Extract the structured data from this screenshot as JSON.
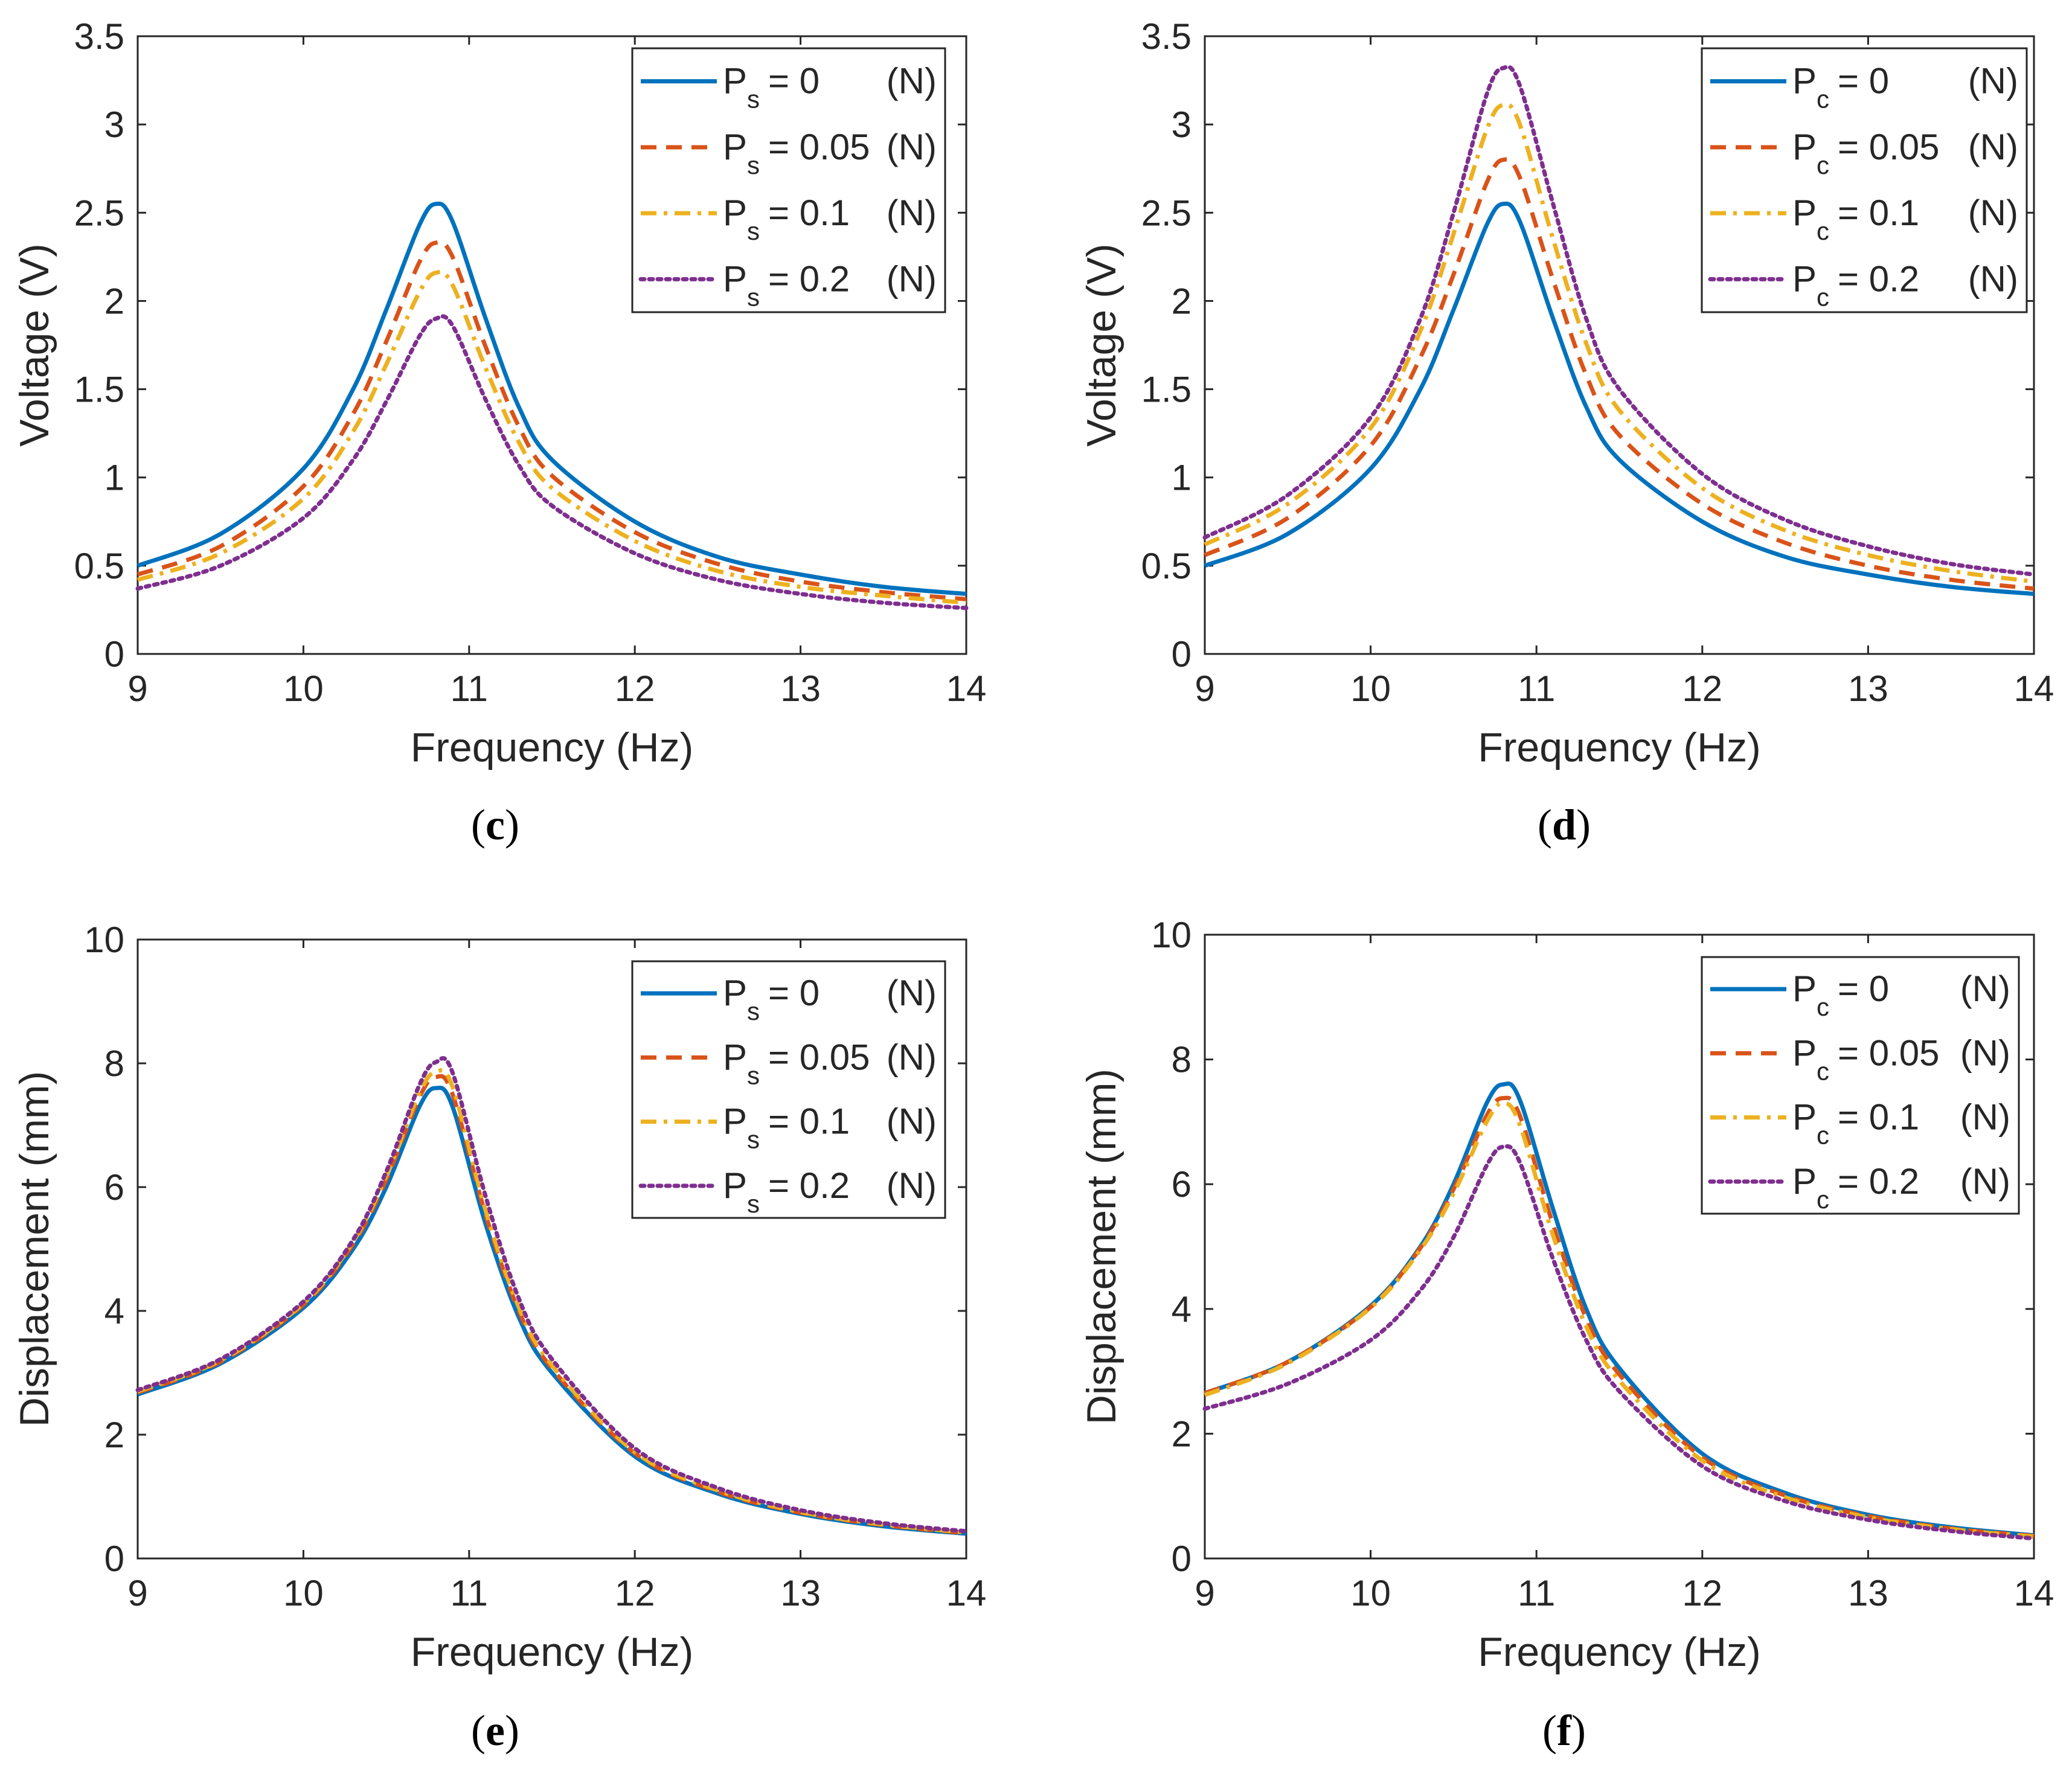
{
  "colors": {
    "series": [
      "#0072BD",
      "#D95319",
      "#EDB120",
      "#7E2F8E"
    ],
    "axis": "#262626",
    "background": "#ffffff"
  },
  "chart_data": [
    {
      "id": "c",
      "caption": "c",
      "type": "line",
      "xlabel": "Frequency (Hz)",
      "ylabel": "Voltage (V)",
      "xlim": [
        9,
        14
      ],
      "ylim": [
        0,
        3.5
      ],
      "xticks": [
        9,
        10,
        11,
        12,
        13,
        14
      ],
      "xtick_labels": [
        "9",
        "10",
        "11",
        "12",
        "13",
        "14"
      ],
      "yticks": [
        0,
        0.5,
        1,
        1.5,
        2,
        2.5,
        3,
        3.5
      ],
      "ytick_labels": [
        "0",
        "0.5",
        "1",
        "1.5",
        "2",
        "2.5",
        "3",
        "3.5"
      ],
      "legend_position": "top-right",
      "x": [
        9.0,
        9.5,
        10.0,
        10.3,
        10.5,
        10.7,
        10.8,
        10.9,
        11.1,
        11.3,
        11.5,
        12.0,
        12.5,
        13.0,
        13.5,
        14.0
      ],
      "series": [
        {
          "name": "Ps = 0 (N)",
          "sym": "P",
          "sub": "s",
          "val": "= 0",
          "unit": "(N)",
          "style": "solid",
          "values": [
            0.5,
            0.68,
            1.05,
            1.5,
            1.95,
            2.43,
            2.55,
            2.45,
            1.9,
            1.4,
            1.1,
            0.75,
            0.55,
            0.45,
            0.38,
            0.34
          ]
        },
        {
          "name": "Ps = 0.05 (N)",
          "sym": "P",
          "sub": "s",
          "val": "= 0.05",
          "unit": "(N)",
          "style": "dashed",
          "values": [
            0.45,
            0.61,
            0.95,
            1.36,
            1.77,
            2.22,
            2.33,
            2.25,
            1.74,
            1.29,
            1.01,
            0.69,
            0.51,
            0.41,
            0.35,
            0.31
          ]
        },
        {
          "name": "Ps = 0.1 (N)",
          "sym": "P",
          "sub": "s",
          "val": "= 0.1",
          "unit": "(N)",
          "style": "dashdot",
          "values": [
            0.42,
            0.57,
            0.88,
            1.26,
            1.64,
            2.05,
            2.16,
            2.09,
            1.62,
            1.2,
            0.94,
            0.64,
            0.47,
            0.38,
            0.33,
            0.29
          ]
        },
        {
          "name": "Ps = 0.2 (N)",
          "sym": "P",
          "sub": "s",
          "val": "= 0.2",
          "unit": "(N)",
          "style": "dotted",
          "values": [
            0.37,
            0.5,
            0.77,
            1.1,
            1.43,
            1.8,
            1.9,
            1.86,
            1.44,
            1.07,
            0.84,
            0.57,
            0.42,
            0.34,
            0.29,
            0.26
          ]
        }
      ]
    },
    {
      "id": "d",
      "caption": "d",
      "type": "line",
      "xlabel": "Frequency (Hz)",
      "ylabel": "Voltage (V)",
      "xlim": [
        9,
        14
      ],
      "ylim": [
        0,
        3.5
      ],
      "xticks": [
        9,
        10,
        11,
        12,
        13,
        14
      ],
      "xtick_labels": [
        "9",
        "10",
        "11",
        "12",
        "13",
        "14"
      ],
      "yticks": [
        0,
        0.5,
        1,
        1.5,
        2,
        2.5,
        3,
        3.5
      ],
      "ytick_labels": [
        "0",
        "0.5",
        "1",
        "1.5",
        "2",
        "2.5",
        "3",
        "3.5"
      ],
      "legend_position": "top-right",
      "x": [
        9.0,
        9.5,
        10.0,
        10.3,
        10.5,
        10.7,
        10.8,
        10.9,
        11.1,
        11.3,
        11.5,
        12.0,
        12.5,
        13.0,
        13.5,
        14.0
      ],
      "series": [
        {
          "name": "Pc = 0 (N)",
          "sym": "P",
          "sub": "c",
          "val": "= 0",
          "unit": "(N)",
          "style": "solid",
          "values": [
            0.5,
            0.68,
            1.05,
            1.5,
            1.95,
            2.43,
            2.55,
            2.45,
            1.9,
            1.4,
            1.1,
            0.75,
            0.55,
            0.45,
            0.38,
            0.34
          ]
        },
        {
          "name": "Pc = 0.05 (N)",
          "sym": "P",
          "sub": "c",
          "val": "= 0.05",
          "unit": "(N)",
          "style": "dashed",
          "values": [
            0.56,
            0.77,
            1.18,
            1.68,
            2.15,
            2.67,
            2.8,
            2.7,
            2.12,
            1.58,
            1.24,
            0.85,
            0.63,
            0.5,
            0.42,
            0.37
          ]
        },
        {
          "name": "Pc = 0.1 (N)",
          "sym": "P",
          "sub": "c",
          "val": "= 0.1",
          "unit": "(N)",
          "style": "dashdot",
          "values": [
            0.62,
            0.85,
            1.28,
            1.83,
            2.38,
            2.97,
            3.11,
            3.0,
            2.35,
            1.76,
            1.38,
            0.94,
            0.7,
            0.56,
            0.47,
            0.41
          ]
        },
        {
          "name": "Pc = 0.2 (N)",
          "sym": "P",
          "sub": "c",
          "val": "= 0.2",
          "unit": "(N)",
          "style": "dotted",
          "values": [
            0.66,
            0.9,
            1.34,
            1.9,
            2.5,
            3.17,
            3.32,
            3.22,
            2.55,
            1.9,
            1.5,
            1.02,
            0.76,
            0.61,
            0.51,
            0.45
          ]
        }
      ]
    },
    {
      "id": "e",
      "caption": "e",
      "type": "line",
      "xlabel": "Frequency (Hz)",
      "ylabel": "Displacement (mm)",
      "xlim": [
        9,
        14
      ],
      "ylim": [
        0,
        10
      ],
      "xticks": [
        9,
        10,
        11,
        12,
        13,
        14
      ],
      "xtick_labels": [
        "9",
        "10",
        "11",
        "12",
        "13",
        "14"
      ],
      "yticks": [
        0,
        2,
        4,
        6,
        8,
        10
      ],
      "ytick_labels": [
        "0",
        "2",
        "4",
        "6",
        "8",
        "10"
      ],
      "legend_position": "top-right",
      "x": [
        9.0,
        9.5,
        10.0,
        10.3,
        10.5,
        10.7,
        10.8,
        10.9,
        11.1,
        11.3,
        11.5,
        12.0,
        12.5,
        13.0,
        13.5,
        14.0
      ],
      "series": [
        {
          "name": "Ps = 0 (N)",
          "sym": "P",
          "sub": "s",
          "val": "= 0",
          "unit": "(N)",
          "style": "solid",
          "values": [
            2.65,
            3.15,
            4.05,
            5.0,
            6.0,
            7.3,
            7.6,
            7.3,
            5.4,
            3.9,
            3.0,
            1.65,
            1.05,
            0.72,
            0.52,
            0.4
          ]
        },
        {
          "name": "Ps = 0.05 (N)",
          "sym": "P",
          "sub": "s",
          "val": "= 0.05",
          "unit": "(N)",
          "style": "dashed",
          "values": [
            2.68,
            3.18,
            4.1,
            5.08,
            6.12,
            7.45,
            7.78,
            7.5,
            5.55,
            4.0,
            3.07,
            1.7,
            1.08,
            0.74,
            0.54,
            0.41
          ]
        },
        {
          "name": "Ps = 0.1 (N)",
          "sym": "P",
          "sub": "s",
          "val": "= 0.1",
          "unit": "(N)",
          "style": "dashdot",
          "values": [
            2.7,
            3.2,
            4.12,
            5.12,
            6.18,
            7.52,
            7.86,
            7.62,
            5.62,
            4.06,
            3.12,
            1.72,
            1.1,
            0.75,
            0.55,
            0.42
          ]
        },
        {
          "name": "Ps = 0.2 (N)",
          "sym": "P",
          "sub": "s",
          "val": "= 0.2",
          "unit": "(N)",
          "style": "dotted",
          "values": [
            2.72,
            3.22,
            4.15,
            5.15,
            6.25,
            7.65,
            8.02,
            7.85,
            5.85,
            4.2,
            3.22,
            1.78,
            1.14,
            0.78,
            0.57,
            0.44
          ]
        }
      ]
    },
    {
      "id": "f",
      "caption": "f",
      "type": "line",
      "xlabel": "Frequency (Hz)",
      "ylabel": "Displacement (mm)",
      "xlim": [
        9,
        14
      ],
      "ylim": [
        0,
        10
      ],
      "xticks": [
        9,
        10,
        11,
        12,
        13,
        14
      ],
      "xtick_labels": [
        "9",
        "10",
        "11",
        "12",
        "13",
        "14"
      ],
      "yticks": [
        0,
        2,
        4,
        6,
        8,
        10
      ],
      "ytick_labels": [
        "0",
        "2",
        "4",
        "6",
        "8",
        "10"
      ],
      "legend_position": "top-right",
      "x": [
        9.0,
        9.5,
        10.0,
        10.3,
        10.5,
        10.7,
        10.8,
        10.9,
        11.1,
        11.3,
        11.5,
        12.0,
        12.5,
        13.0,
        13.5,
        14.0
      ],
      "series": [
        {
          "name": "Pc = 0 (N)",
          "sym": "P",
          "sub": "c",
          "val": "= 0",
          "unit": "(N)",
          "style": "solid",
          "values": [
            2.65,
            3.15,
            4.05,
            5.0,
            6.0,
            7.3,
            7.6,
            7.35,
            5.6,
            4.0,
            3.05,
            1.68,
            1.05,
            0.7,
            0.5,
            0.37
          ]
        },
        {
          "name": "Pc = 0.05 (N)",
          "sym": "P",
          "sub": "c",
          "val": "= 0.05",
          "unit": "(N)",
          "style": "dashed",
          "values": [
            2.65,
            3.15,
            4.03,
            4.98,
            5.92,
            7.1,
            7.38,
            7.1,
            5.35,
            3.85,
            2.95,
            1.62,
            1.01,
            0.68,
            0.48,
            0.36
          ]
        },
        {
          "name": "Pc = 0.1 (N)",
          "sym": "P",
          "sub": "c",
          "val": "= 0.1",
          "unit": "(N)",
          "style": "dashdot",
          "values": [
            2.62,
            3.13,
            4.02,
            4.95,
            5.85,
            7.0,
            7.3,
            6.95,
            5.18,
            3.72,
            2.85,
            1.57,
            0.98,
            0.66,
            0.47,
            0.35
          ]
        },
        {
          "name": "Pc = 0.2 (N)",
          "sym": "P",
          "sub": "c",
          "val": "= 0.2",
          "unit": "(N)",
          "style": "dotted",
          "values": [
            2.4,
            2.8,
            3.5,
            4.3,
            5.15,
            6.3,
            6.6,
            6.35,
            4.8,
            3.5,
            2.68,
            1.48,
            0.92,
            0.62,
            0.44,
            0.32
          ]
        }
      ]
    }
  ]
}
